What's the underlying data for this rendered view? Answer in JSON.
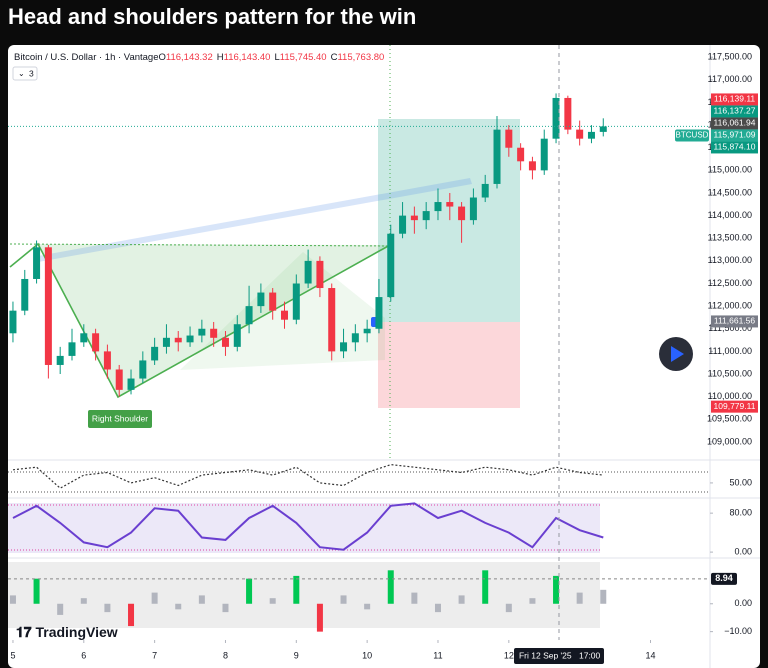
{
  "chart_data": [
    {
      "type": "candlestick",
      "title": "Head and shoulders pattern for the win",
      "subtitle": "Bitcoin / U.S. Dollar · 1h · Vantage",
      "ohlc": {
        "labels": [
          "O",
          "H",
          "L",
          "C"
        ],
        "values": [
          116143.32,
          116143.4,
          115745.4,
          115763.8
        ],
        "value_labels": [
          "116,143.32",
          "116,143.40",
          "115,745.40",
          "115,763.80"
        ]
      },
      "indicator_count": 3,
      "annotations": [
        "Right Shoulder"
      ],
      "watermark": "TradingView",
      "up_color": "#089981",
      "down_color": "#f23645",
      "x": [
        5.0,
        5.1667,
        5.3333,
        5.5,
        5.6667,
        5.8333,
        6.0,
        6.1667,
        6.3333,
        6.5,
        6.6667,
        6.8333,
        7.0,
        7.1667,
        7.3333,
        7.5,
        7.6667,
        7.8333,
        8.0,
        8.1667,
        8.3333,
        8.5,
        8.6667,
        8.8333,
        9.0,
        9.1667,
        9.3333,
        9.5,
        9.6667,
        9.8333,
        10.0,
        10.1667,
        10.3333,
        10.5,
        10.6667,
        10.8333,
        11.0,
        11.1667,
        11.3333,
        11.5,
        11.6667,
        11.8333,
        12.0,
        12.1667,
        12.3333,
        12.5,
        12.6667,
        12.8333,
        13.0,
        13.1667,
        13.3333
      ],
      "open": [
        111400,
        111900,
        112600,
        113300,
        110700,
        110900,
        111200,
        111400,
        111000,
        110600,
        110150,
        110400,
        110800,
        111100,
        111300,
        111200,
        111350,
        111500,
        111300,
        111100,
        111600,
        112000,
        112300,
        111900,
        111700,
        112500,
        113000,
        112400,
        111000,
        111200,
        111400,
        111500,
        112200,
        113600,
        114000,
        113900,
        114100,
        114300,
        114200,
        113900,
        114400,
        114700,
        115900,
        115500,
        115200,
        115000,
        115700,
        116600,
        115900,
        115700,
        115850
      ],
      "high": [
        112100,
        112800,
        113450,
        113350,
        111100,
        111500,
        111600,
        111500,
        111150,
        110700,
        110600,
        111000,
        111300,
        111600,
        111450,
        111550,
        111700,
        111650,
        111450,
        111800,
        112450,
        112500,
        112400,
        112100,
        112700,
        113250,
        113100,
        112500,
        111500,
        111600,
        111700,
        112600,
        113800,
        114300,
        114200,
        114300,
        114600,
        114500,
        114300,
        114600,
        114900,
        116200,
        116000,
        115600,
        115300,
        115900,
        116700,
        116650,
        116100,
        116000,
        116150
      ],
      "low": [
        111200,
        111800,
        112500,
        110400,
        110500,
        110800,
        111100,
        110800,
        110400,
        110000,
        110050,
        110300,
        110700,
        110950,
        111000,
        111100,
        111200,
        111100,
        110900,
        111000,
        111400,
        111850,
        111700,
        111500,
        111600,
        112400,
        112200,
        110800,
        110850,
        111000,
        111200,
        111400,
        112100,
        113500,
        113600,
        113700,
        113900,
        113900,
        113400,
        113800,
        114300,
        114600,
        115300,
        115000,
        114800,
        114900,
        115600,
        115800,
        115550,
        115600,
        115750
      ],
      "close": [
        111900,
        112600,
        113300,
        110700,
        110900,
        111200,
        111400,
        111000,
        110600,
        110150,
        110400,
        110800,
        111100,
        111300,
        111200,
        111350,
        111500,
        111300,
        111100,
        111600,
        112000,
        112300,
        111900,
        111700,
        112500,
        113000,
        112400,
        111000,
        111200,
        111400,
        111500,
        112200,
        113600,
        114000,
        113900,
        114100,
        114300,
        114200,
        113900,
        114400,
        114700,
        115900,
        115500,
        115200,
        115000,
        115700,
        116600,
        115900,
        115700,
        115850,
        115971.09
      ],
      "xlim": [
        4.93,
        14.84
      ],
      "xticks": [
        5,
        6,
        7,
        8,
        9,
        10,
        11,
        12,
        14
      ],
      "ylim": [
        108600,
        117770
      ],
      "yticks": [
        {
          "value": 109000,
          "label": "109,000.00"
        },
        {
          "value": 109500,
          "label": "109,500.00"
        },
        {
          "value": 110000,
          "label": "110,000.00"
        },
        {
          "value": 110500,
          "label": "110,500.00"
        },
        {
          "value": 111000,
          "label": "111,000.00"
        },
        {
          "value": 111500,
          "label": "111,500.00"
        },
        {
          "value": 112000,
          "label": "112,000.00"
        },
        {
          "value": 112500,
          "label": "112,500.00"
        },
        {
          "value": 113000,
          "label": "113,000.00"
        },
        {
          "value": 113500,
          "label": "113,500.00"
        },
        {
          "value": 114000,
          "label": "114,000.00"
        },
        {
          "value": 114500,
          "label": "114,500.00"
        },
        {
          "value": 115000,
          "label": "115,000.00"
        },
        {
          "value": 115500,
          "label": "115,500.00"
        },
        {
          "value": 116000,
          "label": "116,000.00"
        },
        {
          "value": 116500,
          "label": "116,500.00"
        },
        {
          "value": 117000,
          "label": "117,000.00"
        },
        {
          "value": 117500,
          "label": "117,500.00"
        }
      ],
      "price_labels": [
        {
          "value": 116139.11,
          "label": "116,139.11",
          "color": "#f23645"
        },
        {
          "value": 116137.27,
          "label": "116,137.27",
          "color": "#089981"
        },
        {
          "value": 116061.94,
          "label": "116,061.94",
          "color": "#4a4a4a"
        },
        {
          "value": 115971.09,
          "label": "115,971.09",
          "color": "#22ab94",
          "name": "BTCUSD"
        },
        {
          "value": 115874.1,
          "label": "115,874.10",
          "color": "#089981"
        },
        {
          "value": 111661.56,
          "label": "111,661.56",
          "color": "#787b86"
        },
        {
          "value": 109779.11,
          "label": "109,779.11",
          "color": "#f23645"
        }
      ],
      "crosshair": {
        "x": 12.7083,
        "date_label": "Fri 12 Sep '25",
        "time_label": "17:00"
      }
    },
    {
      "type": "line",
      "line_style": "dotted",
      "color": "#333333",
      "x": [
        5.0,
        5.3333,
        5.6667,
        6.0,
        6.3333,
        6.6667,
        7.0,
        7.3333,
        7.6667,
        8.0,
        8.3333,
        8.6667,
        9.0,
        9.3333,
        9.6667,
        10.0,
        10.3333,
        10.6667,
        11.0,
        11.3333,
        11.6667,
        12.0,
        12.3333,
        12.6667,
        13.0,
        13.3333
      ],
      "values": [
        55,
        56,
        48,
        53,
        54,
        50,
        52,
        49,
        53,
        54,
        55,
        53,
        56,
        50,
        49,
        54,
        57,
        56,
        55,
        54,
        56,
        55,
        53,
        56,
        54,
        53
      ],
      "ylim": [
        45,
        58
      ],
      "yticks": [
        {
          "value": 50,
          "label": "50.00"
        }
      ]
    },
    {
      "type": "line",
      "line_style": "solid",
      "color": "#6a3fd0",
      "x": [
        5.0,
        5.3333,
        5.6667,
        6.0,
        6.3333,
        6.6667,
        7.0,
        7.3333,
        7.6667,
        8.0,
        8.3333,
        8.6667,
        9.0,
        9.3333,
        9.6667,
        10.0,
        10.3333,
        10.6667,
        11.0,
        11.3333,
        11.6667,
        12.0,
        12.3333,
        12.6667,
        13.0,
        13.3333
      ],
      "values": [
        70,
        95,
        60,
        20,
        10,
        40,
        90,
        85,
        30,
        25,
        70,
        95,
        60,
        10,
        5,
        40,
        95,
        100,
        70,
        85,
        60,
        40,
        10,
        70,
        45,
        30
      ],
      "ylim": [
        -8,
        107
      ],
      "yticks": [
        {
          "value": 80,
          "label": "80.00"
        },
        {
          "value": 0,
          "label": "0.00"
        }
      ]
    },
    {
      "type": "bar",
      "x": [
        5.0,
        5.3333,
        5.6667,
        6.0,
        6.3333,
        6.6667,
        7.0,
        7.3333,
        7.6667,
        8.0,
        8.3333,
        8.6667,
        9.0,
        9.3333,
        9.6667,
        10.0,
        10.3333,
        10.6667,
        11.0,
        11.3333,
        11.6667,
        12.0,
        12.3333,
        12.6667,
        13.0,
        13.3333
      ],
      "values": [
        3,
        9,
        -4,
        2,
        -3,
        -8,
        4,
        -2,
        3,
        -3,
        9,
        2,
        10,
        -10,
        3,
        -2,
        12,
        4,
        -3,
        3,
        12,
        -3,
        2,
        10,
        4,
        5
      ],
      "colors": [
        "#b2b5be",
        "#00c853",
        "#b2b5be",
        "#b2b5be",
        "#b2b5be",
        "#f23645",
        "#b2b5be",
        "#b2b5be",
        "#b2b5be",
        "#b2b5be",
        "#00c853",
        "#b2b5be",
        "#00c853",
        "#f23645",
        "#b2b5be",
        "#b2b5be",
        "#00c853",
        "#b2b5be",
        "#b2b5be",
        "#b2b5be",
        "#00c853",
        "#b2b5be",
        "#b2b5be",
        "#00c853",
        "#b2b5be",
        "#b2b5be"
      ],
      "ylim": [
        -13,
        15.7
      ],
      "yticks": [
        {
          "value": 0,
          "label": "0.00"
        },
        {
          "value": -10,
          "label": "−10.00"
        }
      ],
      "last_value": {
        "value": 8.94,
        "label": "8.94"
      }
    }
  ]
}
